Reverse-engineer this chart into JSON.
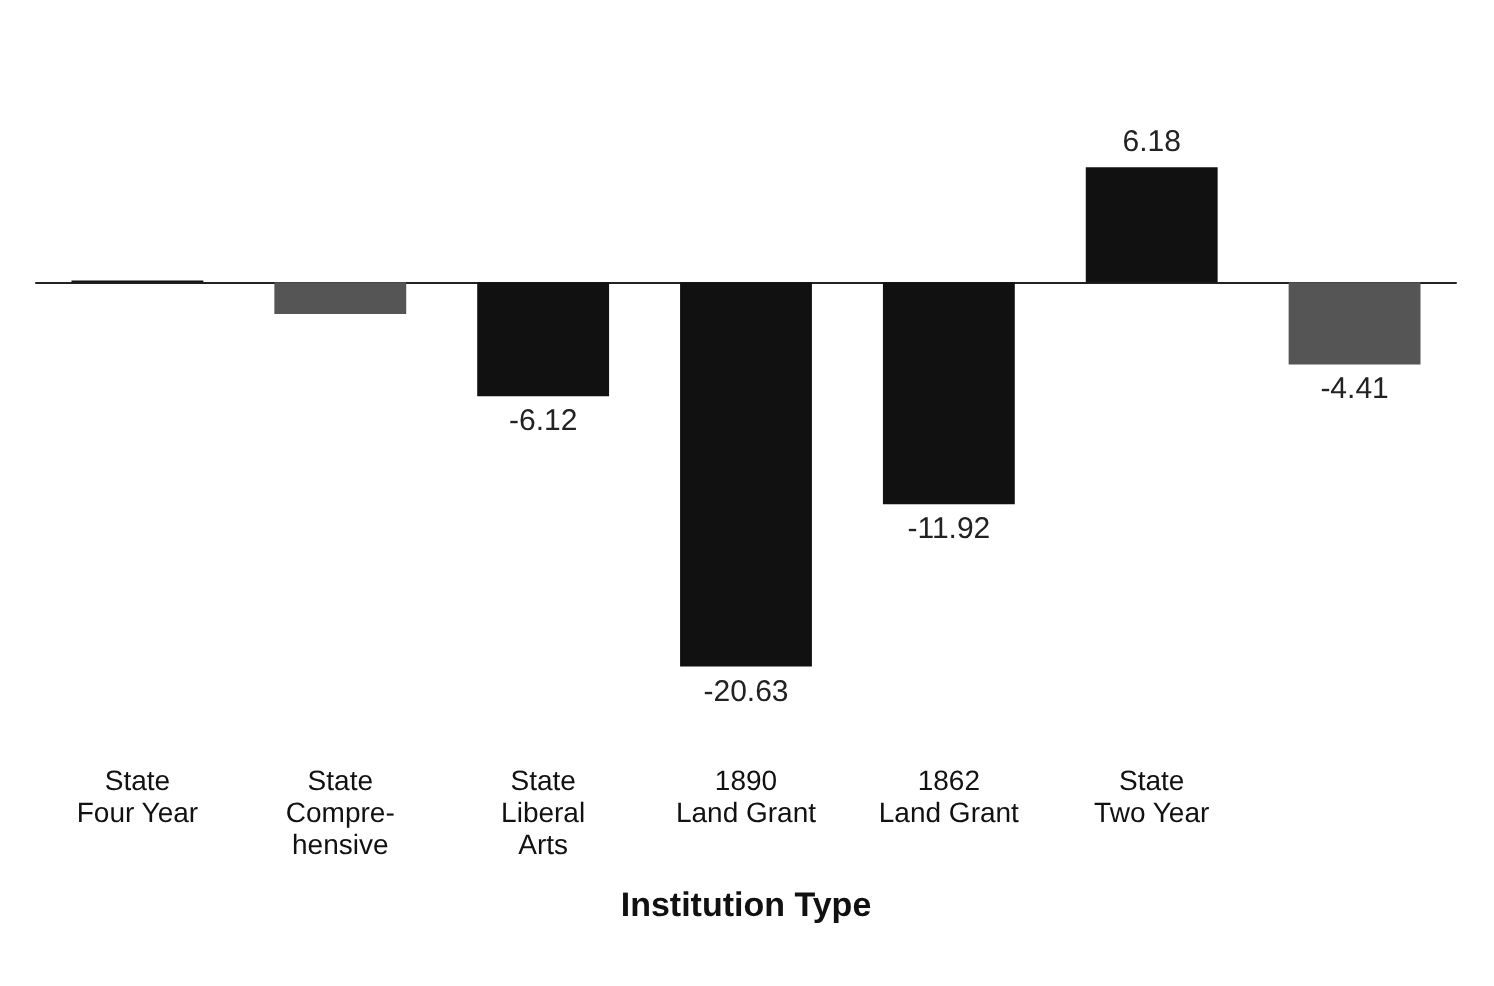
{
  "chart_data": {
    "type": "bar",
    "xlabel": "Institution Type",
    "categories": [
      "State\nFour Year",
      "State\nCompre-\nhensive",
      "State\nLiberal\nArts",
      "1890\nLand Grant",
      "1862\nLand Grant",
      "State\nTwo Year",
      null
    ],
    "values": [
      0.1,
      -1.7,
      -6.12,
      -20.63,
      -11.92,
      6.18,
      -4.41
    ],
    "value_labels": [
      null,
      null,
      "-6.12",
      "-20.63",
      "-11.92",
      "6.18",
      "-4.41"
    ],
    "colors": [
      "#111111",
      "#555555",
      "#111111",
      "#111111",
      "#111111",
      "#111111",
      "#555555"
    ]
  }
}
